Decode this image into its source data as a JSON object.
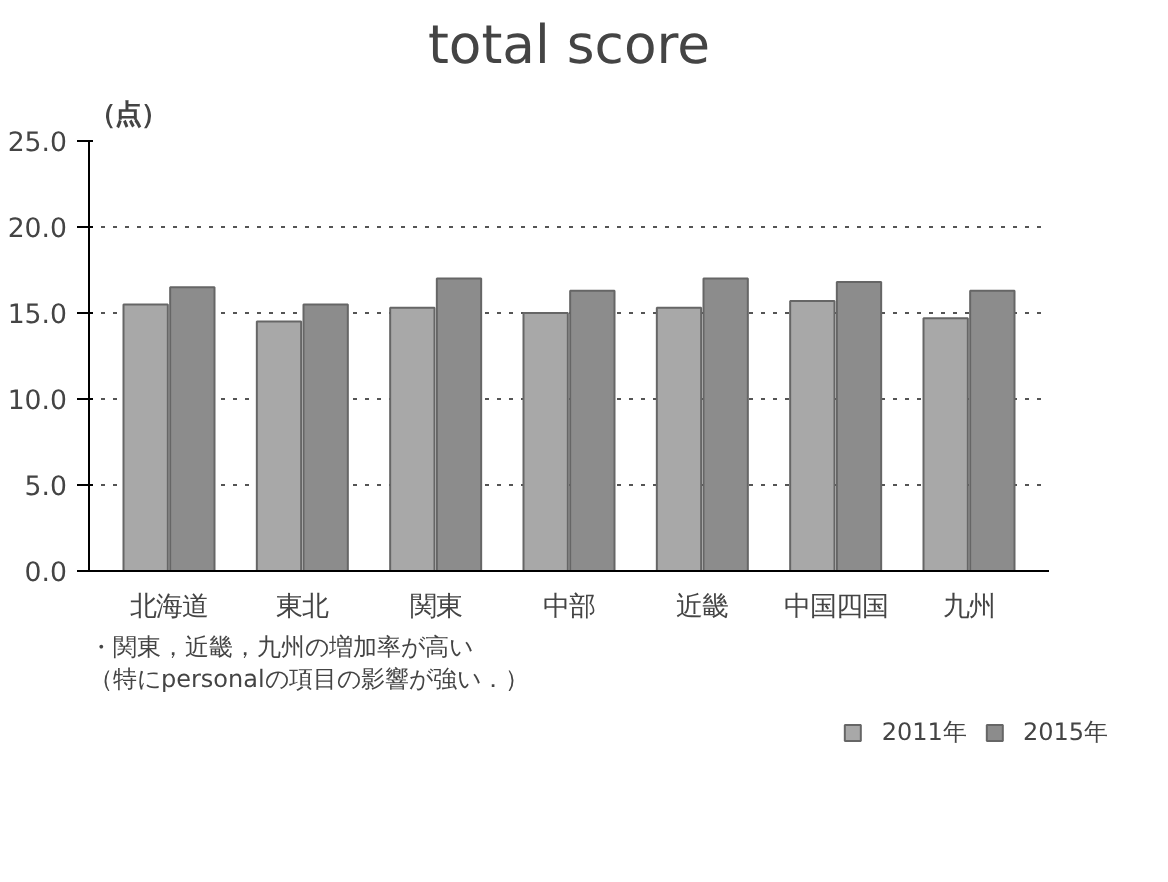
{
  "chart_data": {
    "type": "bar",
    "title": "total score",
    "ylabel": "（点）",
    "categories": [
      "北海道",
      "東北",
      "関東",
      "中部",
      "近畿",
      "中国四国",
      "九州"
    ],
    "series": [
      {
        "name": "2011年",
        "color": "#a8a8a8",
        "values": [
          15.5,
          14.5,
          15.3,
          15.0,
          15.3,
          15.7,
          14.7
        ]
      },
      {
        "name": "2015年",
        "color": "#8c8c8c",
        "values": [
          16.5,
          15.5,
          17.0,
          16.3,
          17.0,
          16.8,
          16.3
        ]
      }
    ],
    "ylim": [
      0,
      25
    ],
    "yticks": [
      {
        "value": 0,
        "label": "0.0"
      },
      {
        "value": 5,
        "label": "5.0"
      },
      {
        "value": 10,
        "label": "10.0"
      },
      {
        "value": 15,
        "label": "15.0"
      },
      {
        "value": 20,
        "label": "20.0"
      },
      {
        "value": 25,
        "label": "25.0"
      }
    ],
    "grid": "y",
    "legend": "bottom right",
    "annotations": [
      "・関東，近畿，九州の増加率が高い",
      "（特にpersonalの項目の影響が強い．）"
    ]
  }
}
